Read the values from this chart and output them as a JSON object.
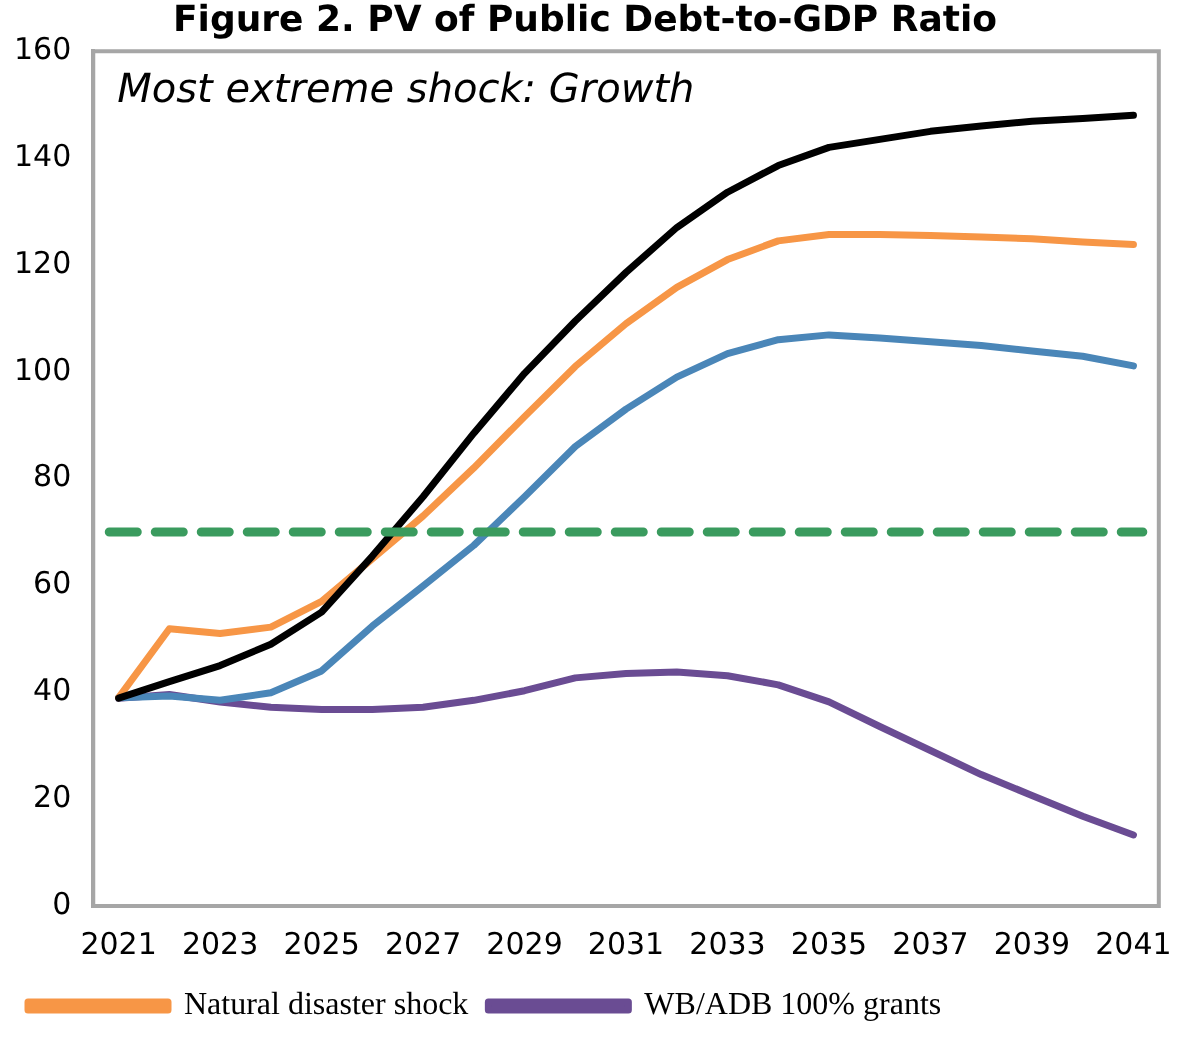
{
  "chart_data": {
    "type": "line",
    "title": "Figure 2. PV of Public Debt-to-GDP Ratio",
    "categories": [
      "2021",
      null,
      "2023",
      null,
      "2025",
      null,
      "2027",
      null,
      "2029",
      null,
      "2031",
      null,
      "2033",
      null,
      "2035",
      null,
      "2037",
      null,
      "2039",
      null,
      "2041"
    ],
    "series": [
      {
        "color": "#000000",
        "values": [
          38.9,
          42,
          45,
          49,
          55,
          65.5,
          76.6,
          88.5,
          99.7,
          109.5,
          118.6,
          127,
          133.6,
          138.6,
          142,
          143.5,
          145,
          146,
          146.9,
          147.4,
          148
        ]
      },
      {
        "name": "Natural disaster shock",
        "color": "#f79646",
        "values": [
          39,
          51.9,
          51,
          52.2,
          57,
          65,
          73,
          82,
          91.6,
          101,
          109,
          115.8,
          121,
          124.5,
          125.7,
          125.7,
          125.5,
          125.2,
          124.9,
          124.3,
          123.8
        ]
      },
      {
        "color": "#4a86b8",
        "values": [
          39,
          39.3,
          38.5,
          39.9,
          44,
          52.4,
          59.9,
          67.5,
          76.6,
          86,
          93,
          99,
          103.4,
          106,
          106.9,
          106.3,
          105.6,
          104.9,
          103.9,
          102.9,
          101.1
        ]
      },
      {
        "name": "WB/ADB 100% grants",
        "color": "#6a4c93",
        "values": [
          38.9,
          39.6,
          38.2,
          37.2,
          36.8,
          36.8,
          37.2,
          38.5,
          40.3,
          42.7,
          43.5,
          43.8,
          43.1,
          41.4,
          38.2,
          33.6,
          29.1,
          24.6,
          20.7,
          16.8,
          13.3
        ]
      }
    ],
    "ref_lines": [
      {
        "axis": "y",
        "value": 70,
        "color": "#3a9b5e",
        "line_style": "dashed"
      }
    ],
    "annotations": [
      "Most extreme shock: Growth"
    ],
    "ylim": [
      0,
      160
    ],
    "yticks": [
      0,
      20,
      40,
      60,
      80,
      100,
      120,
      140,
      160
    ],
    "grid": false,
    "legend": "bottom",
    "marker": "none",
    "line_style": "solid"
  }
}
